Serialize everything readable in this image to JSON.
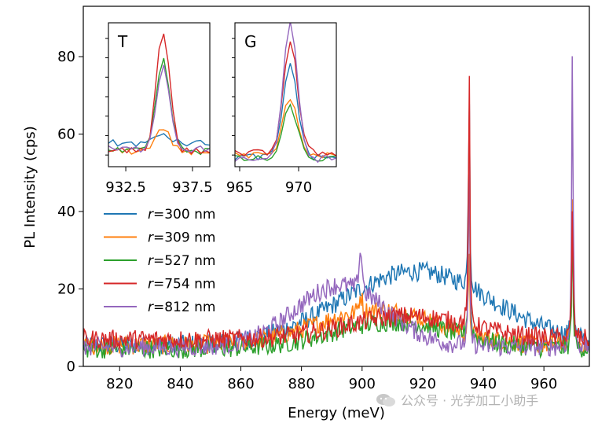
{
  "chart_data": {
    "type": "line",
    "xlabel": "Energy (meV)",
    "ylabel": "PL Intensity (cps)",
    "xlim": [
      808,
      975
    ],
    "ylim": [
      0,
      93
    ],
    "xticks": [
      820,
      840,
      860,
      880,
      900,
      920,
      940,
      960
    ],
    "yticks": [
      0,
      20,
      40,
      60,
      80
    ],
    "grid": false,
    "legend_position": "center-left",
    "series": [
      {
        "name": "r=300 nm",
        "r_value": "300 nm",
        "color": "#1f77b4",
        "baseline": 5.5,
        "broad_peak": 19,
        "broad_center": 918,
        "broad_width": 25,
        "peak_T": 64,
        "peak_G": 37,
        "sharp_900": 0
      },
      {
        "name": "r=309 nm",
        "r_value": "309 nm",
        "color": "#ff7f0e",
        "baseline": 5.5,
        "broad_peak": 9,
        "broad_center": 905,
        "broad_width": 20,
        "peak_T": 28,
        "peak_G": 43,
        "sharp_900": 4
      },
      {
        "name": "r=527 nm",
        "r_value": "527 nm",
        "color": "#2ca02c",
        "baseline": 4.5,
        "broad_peak": 7,
        "broad_center": 910,
        "broad_width": 20,
        "peak_T": 64,
        "peak_G": 37,
        "sharp_900": 0
      },
      {
        "name": "r=754 nm",
        "r_value": "754 nm",
        "color": "#d62728",
        "baseline": 7,
        "broad_peak": 6,
        "broad_center": 915,
        "broad_width": 20,
        "peak_T": 82,
        "peak_G": 42,
        "sharp_900": 0
      },
      {
        "name": "r=812 nm",
        "r_value": "812 nm",
        "color": "#9467bd",
        "baseline": 5,
        "broad_peak": 16,
        "broad_center": 893,
        "broad_width": 15,
        "peak_T": 59,
        "peak_G": 84,
        "sharp_900": 10
      }
    ],
    "insets": [
      {
        "label": "T",
        "xlim": [
          931.2,
          938.8
        ],
        "ylim": [
          52,
          89
        ],
        "xticks": [
          932.5,
          937.5
        ],
        "tick_labels": [
          "932.5",
          "937.5"
        ],
        "peak_center": 935.3,
        "peak_width": 0.5,
        "series": [
          {
            "name": "r=300 nm",
            "base": 58,
            "peak": 60.5
          },
          {
            "name": "r=309 nm",
            "base": 56,
            "peak": 61.5
          },
          {
            "name": "r=527 nm",
            "base": 56,
            "peak": 79.5
          },
          {
            "name": "r=754 nm",
            "base": 56,
            "peak": 87
          },
          {
            "name": "r=812 nm",
            "base": 56.5,
            "peak": 78
          }
        ]
      },
      {
        "label": "G",
        "xlim": [
          964.6,
          973.2
        ],
        "ylim": [
          52,
          89
        ],
        "xticks": [
          965,
          970
        ],
        "tick_labels": [
          "965",
          "970"
        ],
        "peak_center": 969.3,
        "peak_width": 0.6,
        "series": [
          {
            "name": "r=300 nm",
            "base": 54.5,
            "peak": 78.5
          },
          {
            "name": "r=309 nm",
            "base": 55,
            "peak": 70
          },
          {
            "name": "r=527 nm",
            "base": 54,
            "peak": 67.5
          },
          {
            "name": "r=754 nm",
            "base": 55.5,
            "peak": 84
          },
          {
            "name": "r=812 nm",
            "base": 54,
            "peak": 88.5
          }
        ]
      }
    ]
  },
  "legend": {
    "r_symbol": "r",
    "equals": "=",
    "items": [
      "300 nm",
      "309 nm",
      "527 nm",
      "754 nm",
      "812 nm"
    ]
  },
  "watermark": {
    "text": "公众号 · 光学加工小助手"
  }
}
